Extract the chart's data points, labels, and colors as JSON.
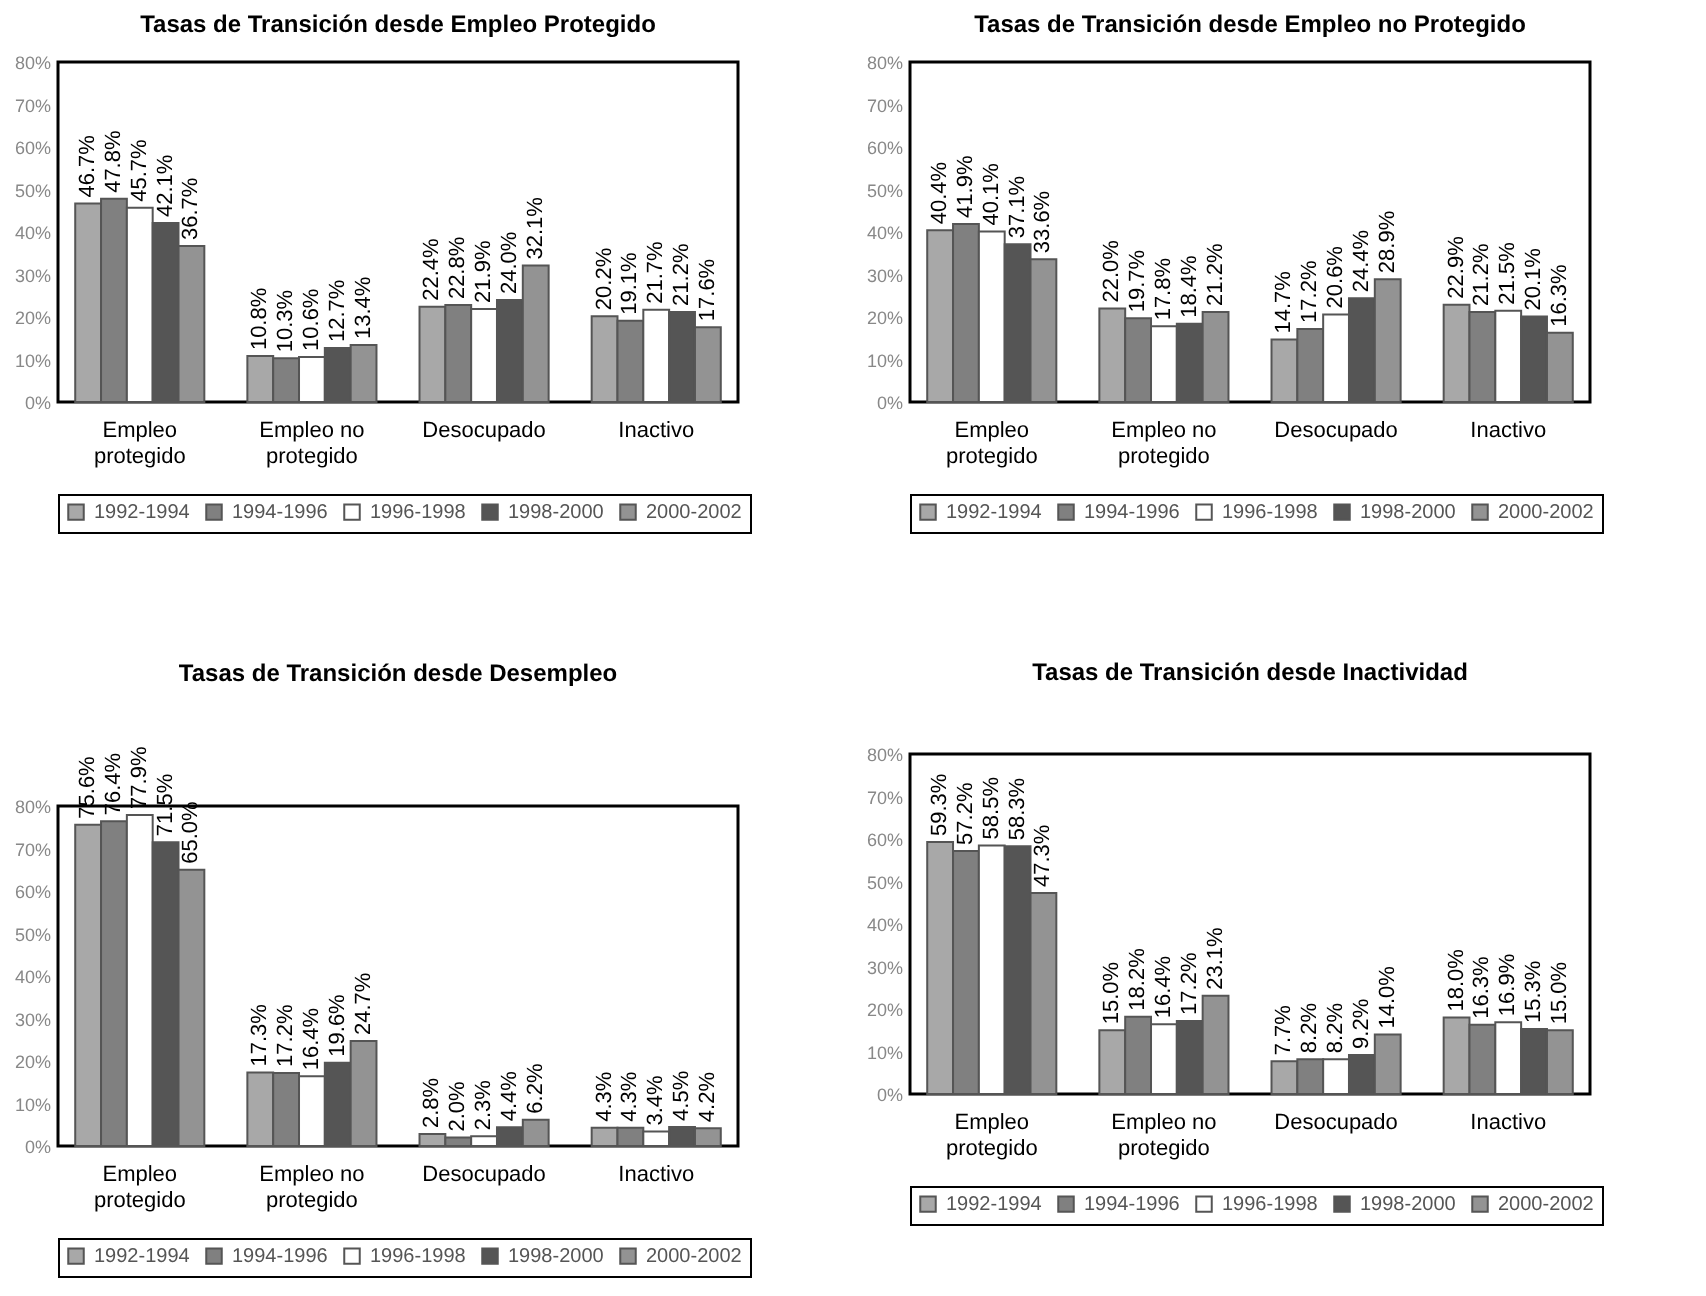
{
  "chart_data": [
    {
      "type": "bar",
      "title": "Tasas de Transición desde Empleo Protegido",
      "categories": [
        "Empleo protegido",
        "Empleo no protegido",
        "Desocupado",
        "Inactivo"
      ],
      "ylim": [
        0,
        80
      ],
      "yticks": [
        {
          "value": 0,
          "label": "0%"
        },
        {
          "value": 10,
          "label": "10%"
        },
        {
          "value": 20,
          "label": "20%"
        },
        {
          "value": 30,
          "label": "30%"
        },
        {
          "value": 40,
          "label": "40%"
        },
        {
          "value": 50,
          "label": "50%"
        },
        {
          "value": 60,
          "label": "60%"
        },
        {
          "value": 70,
          "label": "70%"
        },
        {
          "value": 80,
          "label": "80%"
        }
      ],
      "legend": "bottom",
      "series": [
        {
          "name": "1992-1994",
          "color": "#a8a8a8",
          "values": [
            46.7,
            10.8,
            22.4,
            20.2
          ],
          "value_labels": [
            "46.7%",
            "10.8%",
            "22.4%",
            "20.2%"
          ]
        },
        {
          "name": "1994-1996",
          "color": "#808080",
          "values": [
            47.8,
            10.3,
            22.8,
            19.1
          ],
          "value_labels": [
            "47.8%",
            "10.3%",
            "22.8%",
            "19.1%"
          ]
        },
        {
          "name": "1996-1998",
          "color": "#ffffff",
          "values": [
            45.7,
            10.6,
            21.9,
            21.7
          ],
          "value_labels": [
            "45.7%",
            "10.6%",
            "21.9%",
            "21.7%"
          ]
        },
        {
          "name": "1998-2000",
          "color": "#555555",
          "values": [
            42.1,
            12.7,
            24.0,
            21.2
          ],
          "value_labels": [
            "42.1%",
            "12.7%",
            "24.0%",
            "21.2%"
          ]
        },
        {
          "name": "2000-2002",
          "color": "#939393",
          "values": [
            36.7,
            13.4,
            32.1,
            17.6
          ],
          "value_labels": [
            "36.7%",
            "13.4%",
            "32.1%",
            "17.6%"
          ]
        }
      ]
    },
    {
      "type": "bar",
      "title": "Tasas de Transición desde Empleo no Protegido",
      "categories": [
        "Empleo protegido",
        "Empleo no protegido",
        "Desocupado",
        "Inactivo"
      ],
      "ylim": [
        0,
        80
      ],
      "yticks": [
        {
          "value": 0,
          "label": "0%"
        },
        {
          "value": 10,
          "label": "10%"
        },
        {
          "value": 20,
          "label": "20%"
        },
        {
          "value": 30,
          "label": "30%"
        },
        {
          "value": 40,
          "label": "40%"
        },
        {
          "value": 50,
          "label": "50%"
        },
        {
          "value": 60,
          "label": "60%"
        },
        {
          "value": 70,
          "label": "70%"
        },
        {
          "value": 80,
          "label": "80%"
        }
      ],
      "legend": "bottom",
      "series": [
        {
          "name": "1992-1994",
          "color": "#a8a8a8",
          "values": [
            40.4,
            22.0,
            14.7,
            22.9
          ],
          "value_labels": [
            "40.4%",
            "22.0%",
            "14.7%",
            "22.9%"
          ]
        },
        {
          "name": "1994-1996",
          "color": "#808080",
          "values": [
            41.9,
            19.7,
            17.2,
            21.2
          ],
          "value_labels": [
            "41.9%",
            "19.7%",
            "17.2%",
            "21.2%"
          ]
        },
        {
          "name": "1996-1998",
          "color": "#ffffff",
          "values": [
            40.1,
            17.8,
            20.6,
            21.5
          ],
          "value_labels": [
            "40.1%",
            "17.8%",
            "20.6%",
            "21.5%"
          ]
        },
        {
          "name": "1998-2000",
          "color": "#555555",
          "values": [
            37.1,
            18.4,
            24.4,
            20.1
          ],
          "value_labels": [
            "37.1%",
            "18.4%",
            "24.4%",
            "20.1%"
          ]
        },
        {
          "name": "2000-2002",
          "color": "#939393",
          "values": [
            33.6,
            21.2,
            28.9,
            16.3
          ],
          "value_labels": [
            "33.6%",
            "21.2%",
            "28.9%",
            "16.3%"
          ]
        }
      ]
    },
    {
      "type": "bar",
      "title": "Tasas de Transición desde Desempleo",
      "categories": [
        "Empleo protegido",
        "Empleo no protegido",
        "Desocupado",
        "Inactivo"
      ],
      "ylim": [
        0,
        80
      ],
      "yticks": [
        {
          "value": 0,
          "label": "0%"
        },
        {
          "value": 10,
          "label": "10%"
        },
        {
          "value": 20,
          "label": "20%"
        },
        {
          "value": 30,
          "label": "30%"
        },
        {
          "value": 40,
          "label": "40%"
        },
        {
          "value": 50,
          "label": "50%"
        },
        {
          "value": 60,
          "label": "60%"
        },
        {
          "value": 70,
          "label": "70%"
        },
        {
          "value": 80,
          "label": "80%"
        }
      ],
      "legend": "bottom",
      "series": [
        {
          "name": "1992-1994",
          "color": "#a8a8a8",
          "values": [
            75.6,
            17.3,
            2.8,
            4.3
          ],
          "value_labels": [
            "75.6%",
            "17.3%",
            "2.8%",
            "4.3%"
          ]
        },
        {
          "name": "1994-1996",
          "color": "#808080",
          "values": [
            76.4,
            17.2,
            2.0,
            4.3
          ],
          "value_labels": [
            "76.4%",
            "17.2%",
            "2.0%",
            "4.3%"
          ]
        },
        {
          "name": "1996-1998",
          "color": "#ffffff",
          "values": [
            77.9,
            16.4,
            2.3,
            3.4
          ],
          "value_labels": [
            "77.9%",
            "16.4%",
            "2.3%",
            "3.4%"
          ]
        },
        {
          "name": "1998-2000",
          "color": "#555555",
          "values": [
            71.5,
            19.6,
            4.4,
            4.5
          ],
          "value_labels": [
            "71.5%",
            "19.6%",
            "4.4%",
            "4.5%"
          ]
        },
        {
          "name": "2000-2002",
          "color": "#939393",
          "values": [
            65.0,
            24.7,
            6.2,
            4.2
          ],
          "value_labels": [
            "65.0%",
            "24.7%",
            "6.2%",
            "4.2%"
          ]
        }
      ]
    },
    {
      "type": "bar",
      "title": "Tasas de Transición desde Inactividad",
      "categories": [
        "Empleo protegido",
        "Empleo no protegido",
        "Desocupado",
        "Inactivo"
      ],
      "ylim": [
        0,
        80
      ],
      "yticks": [
        {
          "value": 0,
          "label": "0%"
        },
        {
          "value": 10,
          "label": "10%"
        },
        {
          "value": 20,
          "label": "20%"
        },
        {
          "value": 30,
          "label": "30%"
        },
        {
          "value": 40,
          "label": "40%"
        },
        {
          "value": 50,
          "label": "50%"
        },
        {
          "value": 60,
          "label": "60%"
        },
        {
          "value": 70,
          "label": "70%"
        },
        {
          "value": 80,
          "label": "80%"
        }
      ],
      "legend": "bottom",
      "series": [
        {
          "name": "1992-1994",
          "color": "#a8a8a8",
          "values": [
            59.3,
            15.0,
            7.7,
            18.0
          ],
          "value_labels": [
            "59.3%",
            "15.0%",
            "7.7%",
            "18.0%"
          ]
        },
        {
          "name": "1994-1996",
          "color": "#808080",
          "values": [
            57.2,
            18.2,
            8.2,
            16.3
          ],
          "value_labels": [
            "57.2%",
            "18.2%",
            "8.2%",
            "16.3%"
          ]
        },
        {
          "name": "1996-1998",
          "color": "#ffffff",
          "values": [
            58.5,
            16.4,
            8.2,
            16.9
          ],
          "value_labels": [
            "58.5%",
            "16.4%",
            "8.2%",
            "16.9%"
          ]
        },
        {
          "name": "1998-2000",
          "color": "#555555",
          "values": [
            58.3,
            17.2,
            9.2,
            15.3
          ],
          "value_labels": [
            "58.3%",
            "17.2%",
            "9.2%",
            "15.3%"
          ]
        },
        {
          "name": "2000-2002",
          "color": "#939393",
          "values": [
            47.3,
            23.1,
            14.0,
            15.0
          ],
          "value_labels": [
            "47.3%",
            "23.1%",
            "14.0%",
            "15.0%"
          ]
        }
      ]
    }
  ]
}
